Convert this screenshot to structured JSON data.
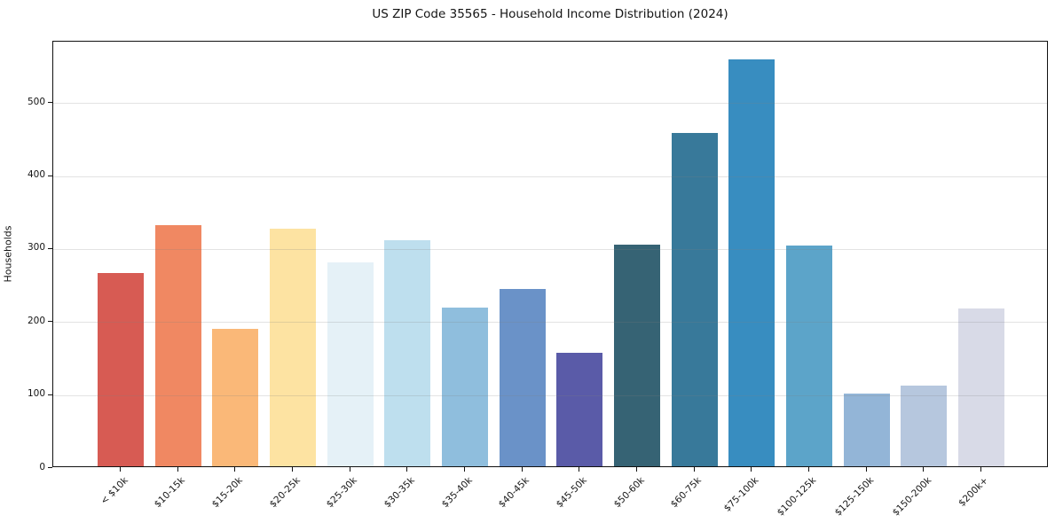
{
  "title": "US ZIP Code 35565 - Household Income Distribution (2024)",
  "chart_data": {
    "type": "bar",
    "title": "US ZIP Code 35565 - Household Income Distribution (2024)",
    "xlabel": "",
    "ylabel": "Households",
    "categories": [
      "< $10k",
      "$10-15k",
      "$15-20k",
      "$20-25k",
      "$25-30k",
      "$30-35k",
      "$35-40k",
      "$40-45k",
      "$45-50k",
      "$50-60k",
      "$60-75k",
      "$75-100k",
      "$100-125k",
      "$125-150k",
      "$150-200k",
      "$200k+"
    ],
    "values": [
      265,
      330,
      188,
      326,
      279,
      310,
      217,
      243,
      155,
      303,
      457,
      557,
      302,
      99,
      110,
      216
    ],
    "bar_colors": [
      "#d75b53",
      "#f08862",
      "#fab878",
      "#fde3a2",
      "#e5f1f7",
      "#bedfee",
      "#8fbedd",
      "#6a92c8",
      "#5a5ba8",
      "#366374",
      "#38799a",
      "#388dc0",
      "#5ca4c9",
      "#93b5d7",
      "#b6c7de",
      "#d8dae7"
    ],
    "ylim": [
      0,
      584
    ],
    "yticks": [
      0,
      100,
      200,
      300,
      400,
      500
    ],
    "grid": true,
    "legend": "none",
    "spine_color": "#111111",
    "text_color": "#141414"
  }
}
